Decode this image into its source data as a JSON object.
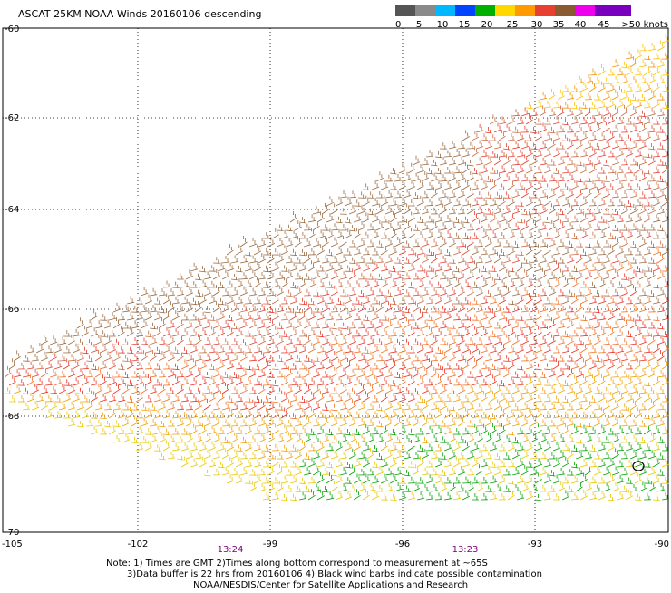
{
  "title": "ASCAT 25KM NOAA Winds 20160106 descending",
  "legend": {
    "labels": [
      "0",
      "5",
      "10",
      "15",
      "20",
      "25",
      "30",
      "35",
      "40",
      "45",
      ">50 knots"
    ],
    "colors": [
      "#555555",
      "#8a8a8a",
      "#00b8ff",
      "#0044ff",
      "#00b000",
      "#ffd800",
      "#ff9a00",
      "#e84030",
      "#8a5a30",
      "#ee00ee",
      "#7a00c0"
    ]
  },
  "lat_labels": [
    "-60",
    "-62",
    "-64",
    "-66",
    "-68",
    "-70"
  ],
  "lon_labels": [
    "-105",
    "-102",
    "-99",
    "-96",
    "-93",
    "-90"
  ],
  "times": [
    "13:24",
    "13:23"
  ],
  "notes": [
    "Note: 1) Times are GMT 2)Times along bottom correspond to measurement at ~65S",
    "3)Data buffer is 22 hrs from 20160106 4) Black wind barbs indicate possible contamination",
    "NOAA/NESDIS/Center for Satellite Applications and Research"
  ]
}
